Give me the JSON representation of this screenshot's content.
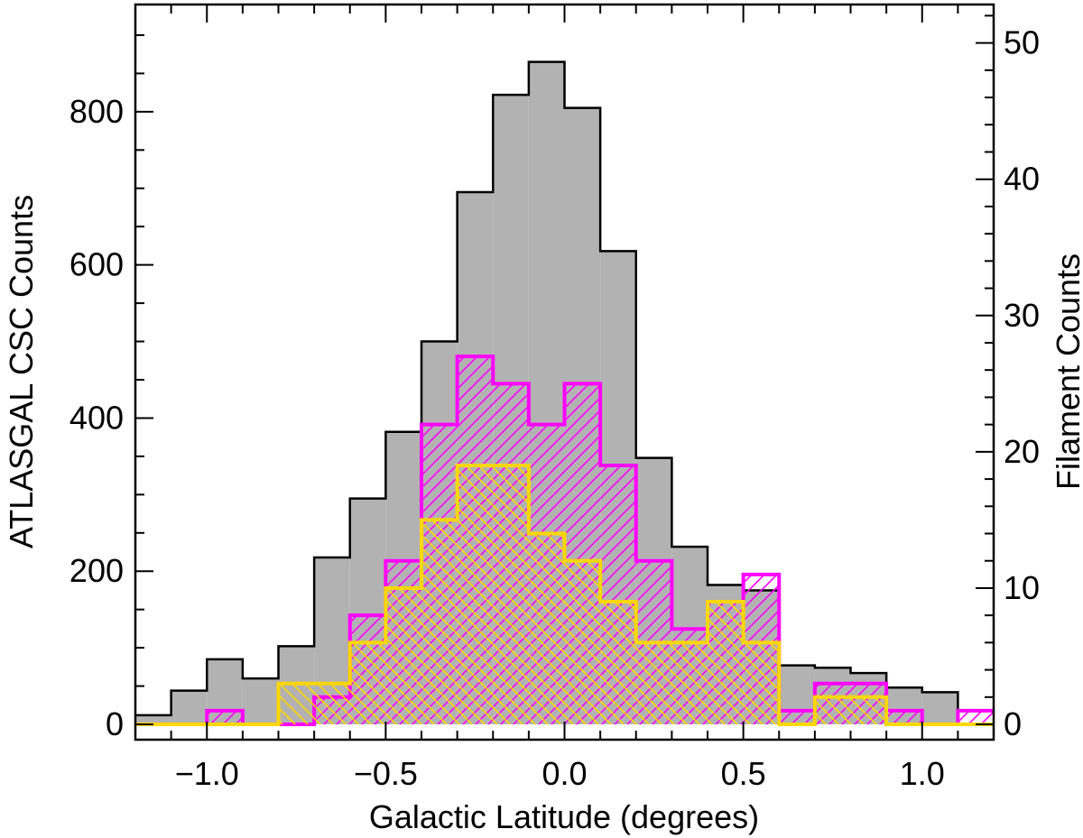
{
  "chart_data": {
    "type": "histogram",
    "xlabel": "Galactic Latitude (degrees)",
    "ylabel_left": "ATLASGAL CSC Counts",
    "ylabel_right": "Filament Counts",
    "xlim": [
      -1.2,
      1.2
    ],
    "ylim_left": [
      -20,
      940
    ],
    "ylim_right": [
      -1.1235,
      52.82
    ],
    "xticks": [
      {
        "value": -1.0,
        "label": "−1.0"
      },
      {
        "value": -0.5,
        "label": "−0.5"
      },
      {
        "value": 0.0,
        "label": "0.0"
      },
      {
        "value": 0.5,
        "label": "0.5"
      },
      {
        "value": 1.0,
        "label": "1.0"
      }
    ],
    "yticks_left": [
      {
        "value": 0,
        "label": "0"
      },
      {
        "value": 200,
        "label": "200"
      },
      {
        "value": 400,
        "label": "400"
      },
      {
        "value": 600,
        "label": "600"
      },
      {
        "value": 800,
        "label": "800"
      }
    ],
    "yticks_right": [
      {
        "value": 0,
        "label": "0"
      },
      {
        "value": 10,
        "label": "10"
      },
      {
        "value": 20,
        "label": "20"
      },
      {
        "value": 30,
        "label": "30"
      },
      {
        "value": 40,
        "label": "40"
      },
      {
        "value": 50,
        "label": "50"
      }
    ],
    "bin_edges": [
      -1.2,
      -1.1,
      -1.0,
      -0.9,
      -0.8,
      -0.7,
      -0.6,
      -0.5,
      -0.4,
      -0.3,
      -0.2,
      -0.1,
      0.0,
      0.1,
      0.2,
      0.3,
      0.4,
      0.5,
      0.6,
      0.7,
      0.8,
      0.9,
      1.0,
      1.1,
      1.2
    ],
    "series": [
      {
        "axis": "left",
        "color": "#b2b2b2",
        "outline": "#000000",
        "style": "solid-fill",
        "values": [
          12,
          44,
          85,
          60,
          102,
          218,
          295,
          382,
          500,
          695,
          822,
          865,
          805,
          618,
          348,
          232,
          182,
          175,
          77,
          74,
          67,
          48,
          42,
          0
        ]
      },
      {
        "axis": "right",
        "color": "#ff00ff",
        "style": "hatch-diagonal",
        "values": [
          0,
          0,
          1,
          0,
          0,
          2,
          8,
          12,
          22,
          27,
          25,
          22,
          25,
          19,
          12,
          7,
          9,
          11,
          1,
          3,
          3,
          1,
          0,
          1
        ]
      },
      {
        "axis": "right",
        "color": "#ffd700",
        "style": "hatch-cross",
        "values": [
          0,
          0,
          0,
          0,
          3,
          3,
          6,
          10,
          15,
          19,
          19,
          14,
          12,
          9,
          6,
          6,
          9,
          6,
          0,
          2,
          2,
          0,
          0,
          0
        ]
      }
    ]
  }
}
